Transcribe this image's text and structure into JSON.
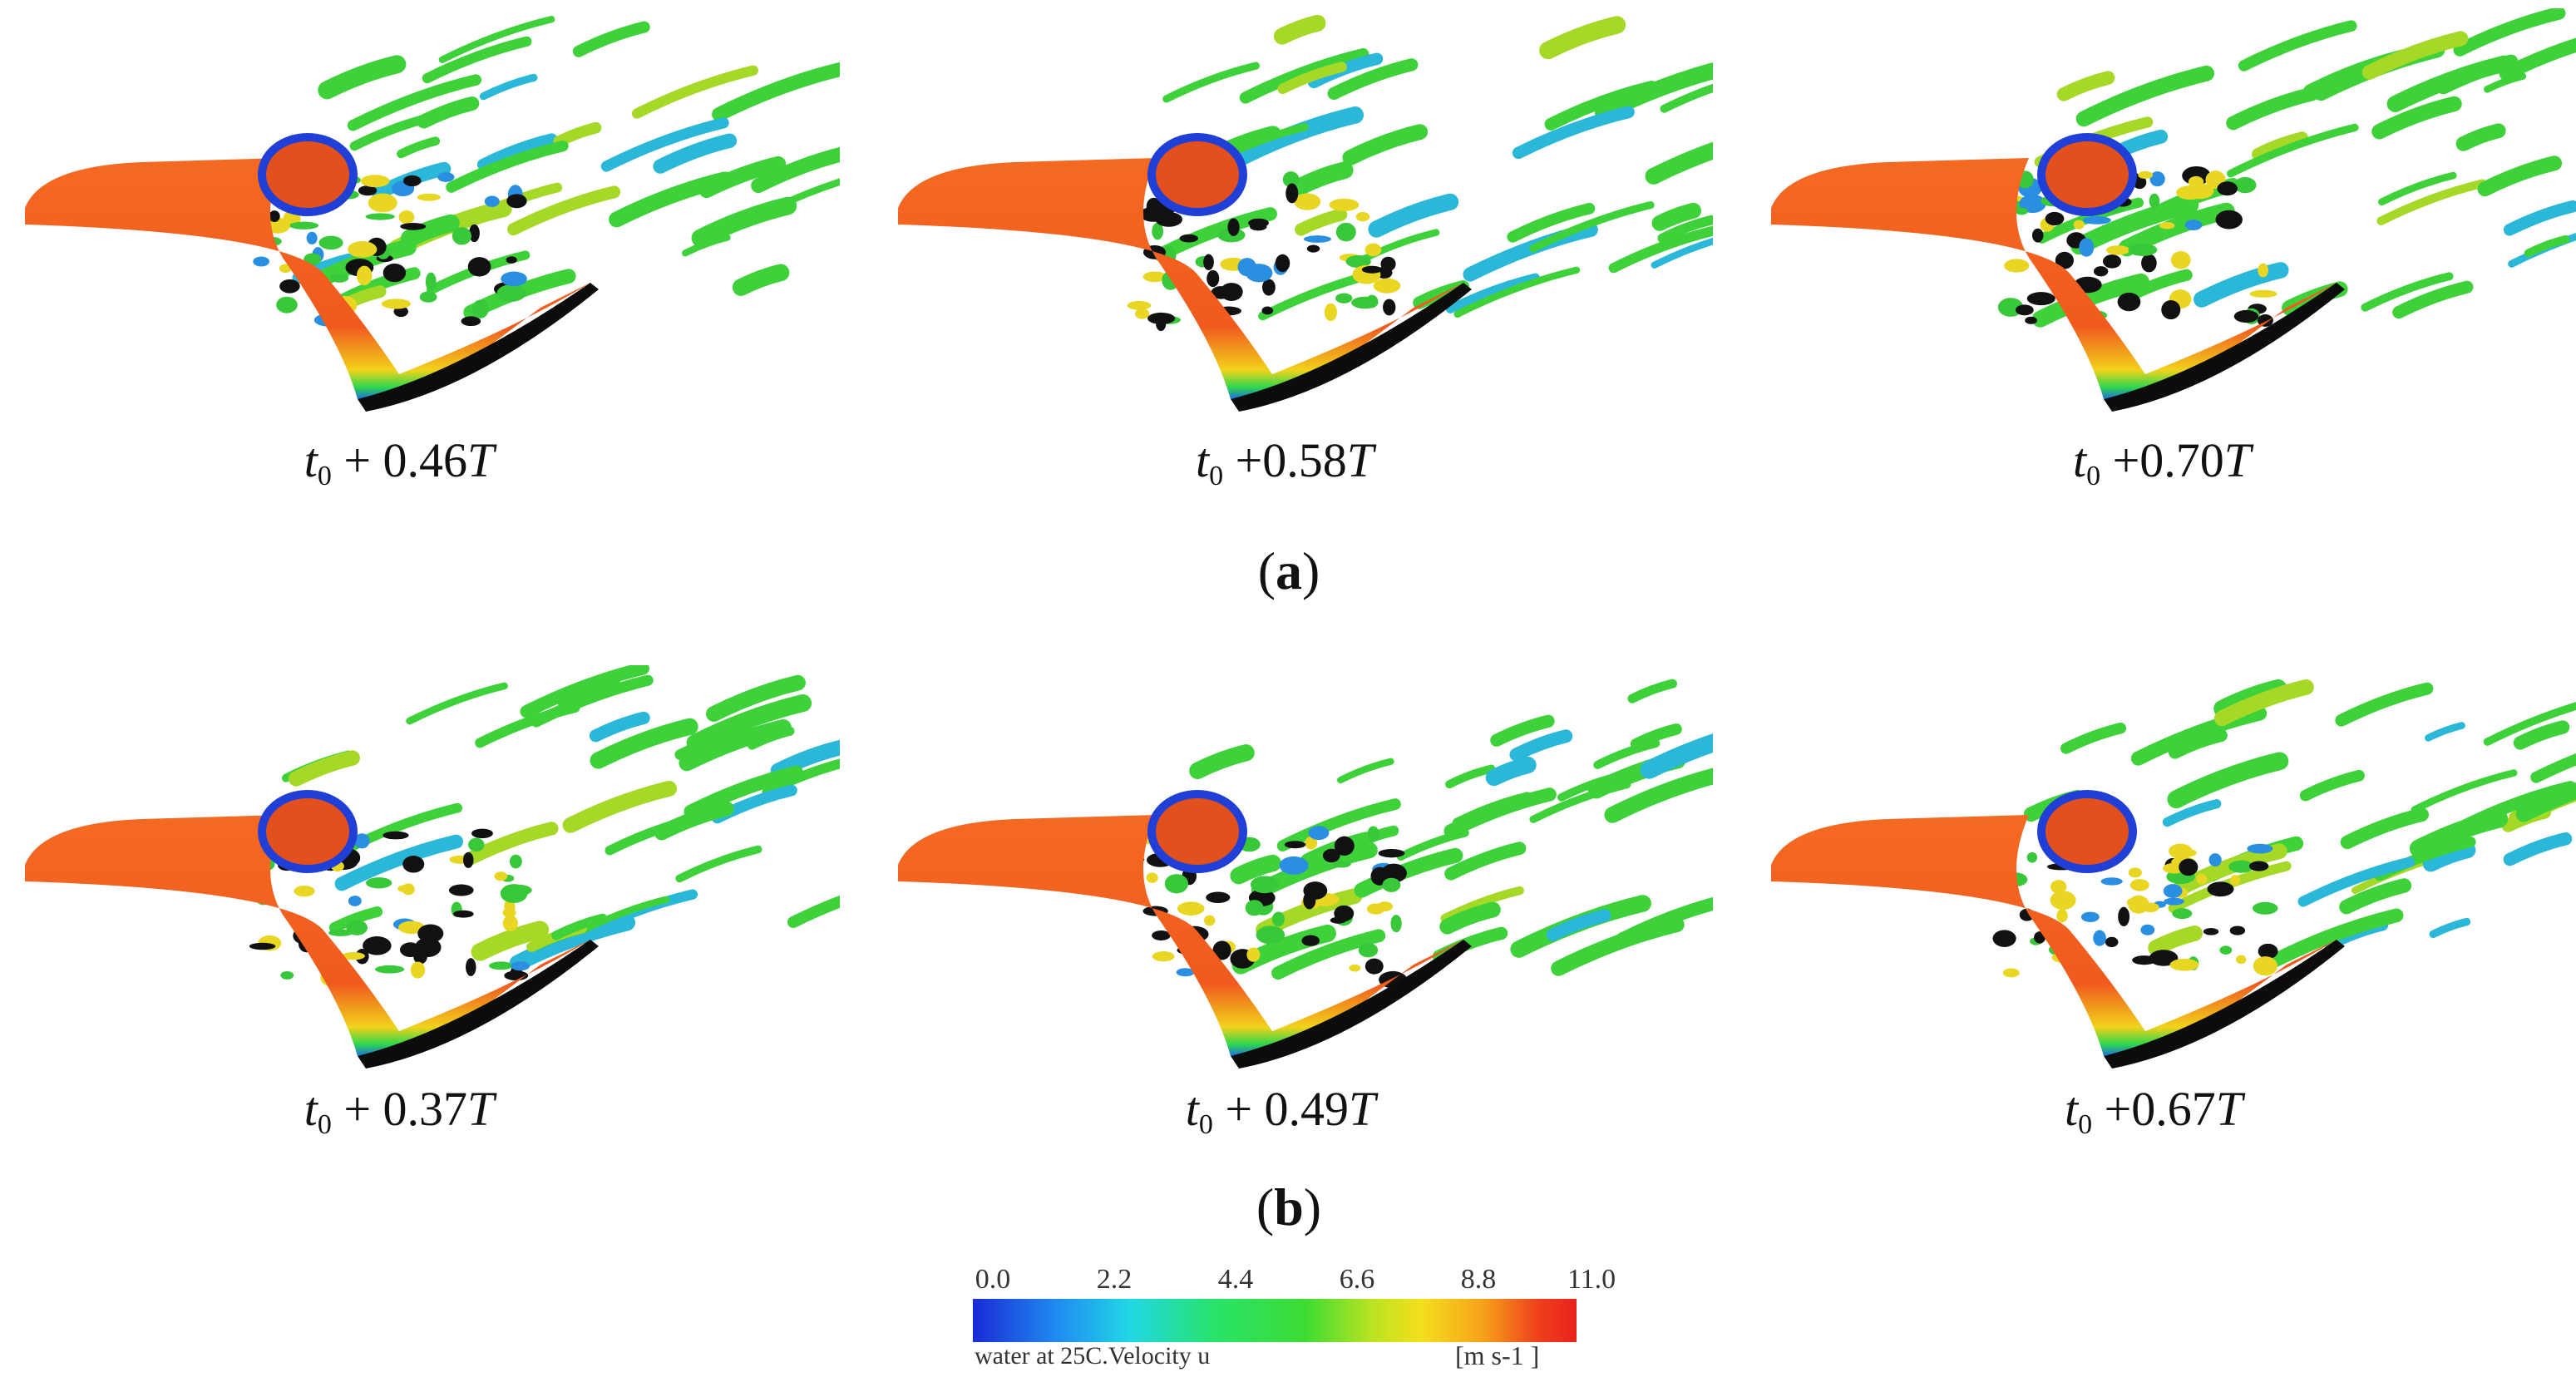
{
  "panels": {
    "a": [
      {
        "time_prefix": "t",
        "sub": "0",
        "rest": " + 0.46",
        "unit": "T"
      },
      {
        "time_prefix": "t",
        "sub": "0",
        "rest": " +0.58",
        "unit": "T"
      },
      {
        "time_prefix": "t",
        "sub": "0",
        "rest": " +0.70",
        "unit": "T"
      }
    ],
    "b": [
      {
        "time_prefix": "t",
        "sub": "0",
        "rest": " + 0.37",
        "unit": "T"
      },
      {
        "time_prefix": "t",
        "sub": "0",
        "rest": " + 0.49",
        "unit": "T"
      },
      {
        "time_prefix": "t",
        "sub": "0",
        "rest": " +0.67",
        "unit": "T"
      }
    ]
  },
  "row_labels": {
    "a": {
      "open": "(",
      "letter": "a",
      "close": ")"
    },
    "b": {
      "open": "(",
      "letter": "b",
      "close": ")"
    }
  },
  "colorbar": {
    "ticks": [
      "0.0",
      "2.2",
      "4.4",
      "6.6",
      "8.8",
      "11.0"
    ],
    "caption": "water at 25C.Velocity u",
    "unit": "[m s-1 ]",
    "colors": [
      "#1a2ad6",
      "#21d7e6",
      "#3ddc33",
      "#f3e01c",
      "#e9231b"
    ]
  }
}
